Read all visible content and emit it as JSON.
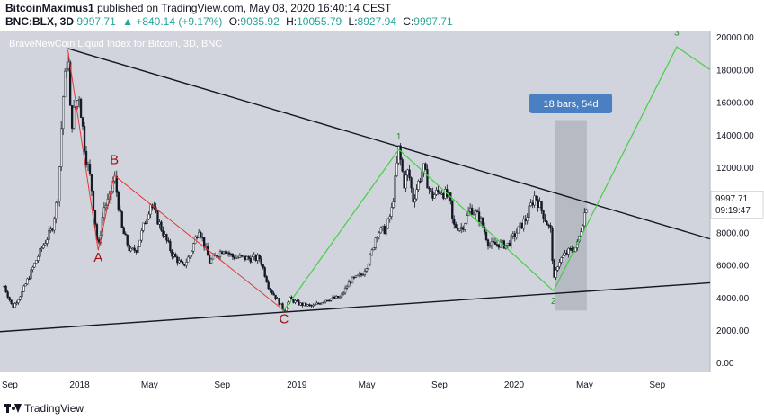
{
  "header": {
    "author": "BitcoinMaximus1",
    "published": "published on TradingView.com, May 08, 2020 16:40:14 CEST",
    "symbol": "BNC:BLX, 3D",
    "last": "9997.71",
    "change": "▲ +840.14 (+9.17%)",
    "o_label": "O:",
    "o_value": "9035.92",
    "h_label": "H:",
    "h_value": "10055.79",
    "l_label": "L:",
    "l_value": "8927.94",
    "c_label": "C:",
    "c_value": "9997.71"
  },
  "footer": {
    "logo_text": "TradingView"
  },
  "colors": {
    "plot_bg": "#d1d4dc",
    "candle": "#131722",
    "red": "#e53935",
    "green": "#43d043",
    "label_red": "#a01010",
    "label_green": "#2e8b2e",
    "price_box": "#ffffff",
    "range_box": "#4a7fc1",
    "range_shade": "#b2b5be"
  },
  "chart_data": {
    "type": "candlestick",
    "title": "BraveNewCoin Liquid Index for Bitcoin, 3D, BNC",
    "x_ticks": [
      "Sep",
      "2018",
      "May",
      "Sep",
      "2019",
      "May",
      "Sep",
      "2020",
      "May",
      "Sep"
    ],
    "y_ticks": [
      "20000.00",
      "18000.00",
      "16000.00",
      "14000.00",
      "12000.00",
      "10000.00",
      "8000.00",
      "6000.00",
      "4000.00",
      "2000.00",
      "0.00"
    ],
    "ylim": [
      -600,
      20400
    ],
    "x_range": [
      "2017-08-25",
      "2020-11-30"
    ],
    "last_price_label": "9997.71",
    "countdown_label": "09:19:47",
    "price_path": [
      [
        "2017-09-01",
        4700
      ],
      [
        "2017-09-15",
        3400
      ],
      [
        "2017-10-01",
        4300
      ],
      [
        "2017-10-20",
        5900
      ],
      [
        "2017-11-05",
        7200
      ],
      [
        "2017-11-20",
        8200
      ],
      [
        "2017-12-01",
        10500
      ],
      [
        "2017-12-08",
        16000
      ],
      [
        "2017-12-17",
        19200
      ],
      [
        "2017-12-22",
        14500
      ],
      [
        "2017-12-28",
        15500
      ],
      [
        "2018-01-05",
        16500
      ],
      [
        "2018-01-15",
        13000
      ],
      [
        "2018-01-25",
        11000
      ],
      [
        "2018-02-06",
        6900
      ],
      [
        "2018-02-15",
        9500
      ],
      [
        "2018-02-25",
        10000
      ],
      [
        "2018-03-05",
        11500
      ],
      [
        "2018-03-18",
        8200
      ],
      [
        "2018-04-01",
        6800
      ],
      [
        "2018-04-12",
        7000
      ],
      [
        "2018-05-05",
        9800
      ],
      [
        "2018-05-20",
        8500
      ],
      [
        "2018-06-10",
        6700
      ],
      [
        "2018-06-28",
        5900
      ],
      [
        "2018-07-10",
        6600
      ],
      [
        "2018-07-25",
        8300
      ],
      [
        "2018-08-12",
        6200
      ],
      [
        "2018-09-05",
        7000
      ],
      [
        "2018-09-20",
        6500
      ],
      [
        "2018-10-15",
        6400
      ],
      [
        "2018-11-05",
        6400
      ],
      [
        "2018-11-20",
        4600
      ],
      [
        "2018-12-05",
        3800
      ],
      [
        "2018-12-15",
        3200
      ],
      [
        "2018-12-25",
        3900
      ],
      [
        "2019-01-10",
        3600
      ],
      [
        "2019-02-01",
        3450
      ],
      [
        "2019-02-25",
        3900
      ],
      [
        "2019-03-20",
        4000
      ],
      [
        "2019-04-05",
        5000
      ],
      [
        "2019-04-25",
        5400
      ],
      [
        "2019-05-10",
        6500
      ],
      [
        "2019-05-20",
        8000
      ],
      [
        "2019-06-05",
        8200
      ],
      [
        "2019-06-15",
        9500
      ],
      [
        "2019-06-26",
        13100
      ],
      [
        "2019-07-05",
        11000
      ],
      [
        "2019-07-12",
        11800
      ],
      [
        "2019-07-20",
        10000
      ],
      [
        "2019-08-06",
        12000
      ],
      [
        "2019-08-20",
        10200
      ],
      [
        "2019-09-05",
        10600
      ],
      [
        "2019-09-20",
        10000
      ],
      [
        "2019-09-25",
        8400
      ],
      [
        "2019-10-10",
        8300
      ],
      [
        "2019-10-25",
        9500
      ],
      [
        "2019-11-10",
        8800
      ],
      [
        "2019-11-25",
        7200
      ],
      [
        "2019-12-10",
        7300
      ],
      [
        "2019-12-25",
        7200
      ],
      [
        "2020-01-10",
        8000
      ],
      [
        "2020-01-25",
        8800
      ],
      [
        "2020-02-10",
        10300
      ],
      [
        "2020-02-25",
        9000
      ],
      [
        "2020-03-08",
        8000
      ],
      [
        "2020-03-12",
        4900
      ],
      [
        "2020-03-20",
        6200
      ],
      [
        "2020-04-05",
        6800
      ],
      [
        "2020-04-20",
        7100
      ],
      [
        "2020-04-30",
        8700
      ],
      [
        "2020-05-08",
        9997.71
      ]
    ],
    "lines": {
      "upper_trendline": [
        [
          "2017-12-17",
          19300
        ],
        [
          "2020-11-30",
          7600
        ]
      ],
      "lower_trendline": [
        [
          "2017-08-25",
          1900
        ],
        [
          "2020-11-30",
          4900
        ]
      ],
      "red_wave": [
        [
          "2017-12-17",
          19200
        ],
        [
          "2018-02-06",
          6900
        ],
        [
          "2018-03-05",
          11500
        ],
        [
          "2018-12-15",
          3200
        ]
      ],
      "green_wave_up": [
        [
          "2018-12-15",
          3200
        ],
        [
          "2019-06-26",
          13100
        ]
      ],
      "green_wave_down": [
        [
          "2019-06-26",
          13100
        ],
        [
          "2020-03-12",
          4400
        ]
      ],
      "green_wave_projection": [
        [
          "2020-03-12",
          4400
        ],
        [
          "2020-10-05",
          19400
        ],
        [
          "2020-11-30",
          18000
        ]
      ]
    },
    "wave_labels": [
      {
        "text": "A",
        "x": "2018-02-06",
        "y": 6200,
        "color": "red"
      },
      {
        "text": "B",
        "x": "2018-03-05",
        "y": 12200,
        "color": "red"
      },
      {
        "text": "C",
        "x": "2018-12-15",
        "y": 2400,
        "color": "red"
      },
      {
        "text": "1",
        "x": "2019-06-26",
        "y": 13700,
        "color": "green"
      },
      {
        "text": "2",
        "x": "2020-03-12",
        "y": 3600,
        "color": "green"
      },
      {
        "text": "3",
        "x": "2020-10-05",
        "y": 20100,
        "color": "green"
      }
    ],
    "date_range": {
      "label": "18 bars, 54d",
      "from": "2020-03-14",
      "to": "2020-05-07",
      "y_low": 3200,
      "y_high": 14900
    }
  }
}
